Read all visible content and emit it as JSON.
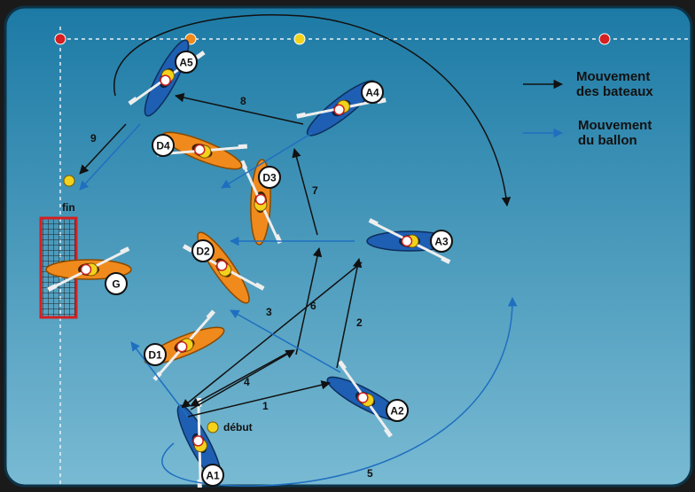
{
  "legend": {
    "boat_movement_line1": "Mouvement",
    "boat_movement_line2": "des bateaux",
    "ball_movement_line1": "Mouvement",
    "ball_movement_line2": "du ballon",
    "boat_color": "#111111",
    "ball_color": "#1f6fc0"
  },
  "labels": {
    "start": "début",
    "end": "fin"
  },
  "steps": [
    "1",
    "2",
    "3",
    "4",
    "5",
    "6",
    "7",
    "8",
    "9"
  ],
  "players": {
    "attackers": [
      "A1",
      "A2",
      "A3",
      "A4",
      "A5"
    ],
    "defenders": [
      "D1",
      "D2",
      "D3",
      "D4",
      "G"
    ]
  },
  "colors": {
    "water_top": "#1f7fa8",
    "water_bottom": "#6fb3cf",
    "attack_boat": "#1e5fb3",
    "defense_boat": "#f08a1c",
    "goal": "#d42020"
  }
}
